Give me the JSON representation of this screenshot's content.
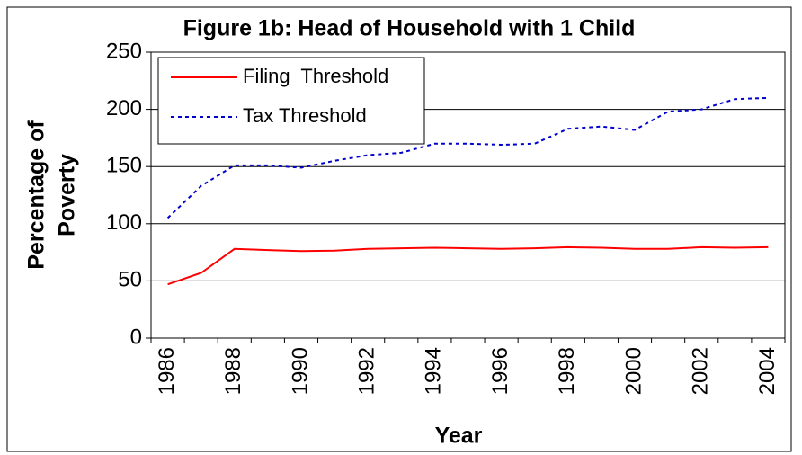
{
  "chart_data": {
    "type": "line",
    "title": "Figure 1b: Head of Household with 1 Child",
    "y_label": [
      "Percentage of",
      "Poverty"
    ],
    "x_label": "Year",
    "categories": [
      "1986",
      null,
      "1988",
      null,
      "1990",
      null,
      "1992",
      null,
      "1994",
      null,
      "1996",
      null,
      "1998",
      null,
      "2000",
      null,
      "2002",
      null,
      "2004"
    ],
    "series": [
      {
        "name": "Filing  Threshold",
        "color": "#ff0000",
        "dash": "solid",
        "values": [
          47,
          57,
          78,
          77,
          76,
          76.5,
          78,
          78.5,
          79,
          78.5,
          78,
          78.5,
          79.5,
          79,
          78,
          78,
          79.5,
          79,
          79.5
        ]
      },
      {
        "name": "Tax Threshold",
        "color": "#0000cc",
        "dash": "dotted",
        "values": [
          105,
          133,
          151,
          151,
          149,
          155,
          160,
          162,
          170,
          170,
          169,
          170,
          183,
          185,
          182,
          198,
          200,
          209,
          210
        ]
      }
    ],
    "ylim": [
      0,
      250
    ],
    "yticks": [
      0,
      50,
      100,
      150,
      200,
      250
    ],
    "grid": true,
    "legend": "top-left"
  }
}
